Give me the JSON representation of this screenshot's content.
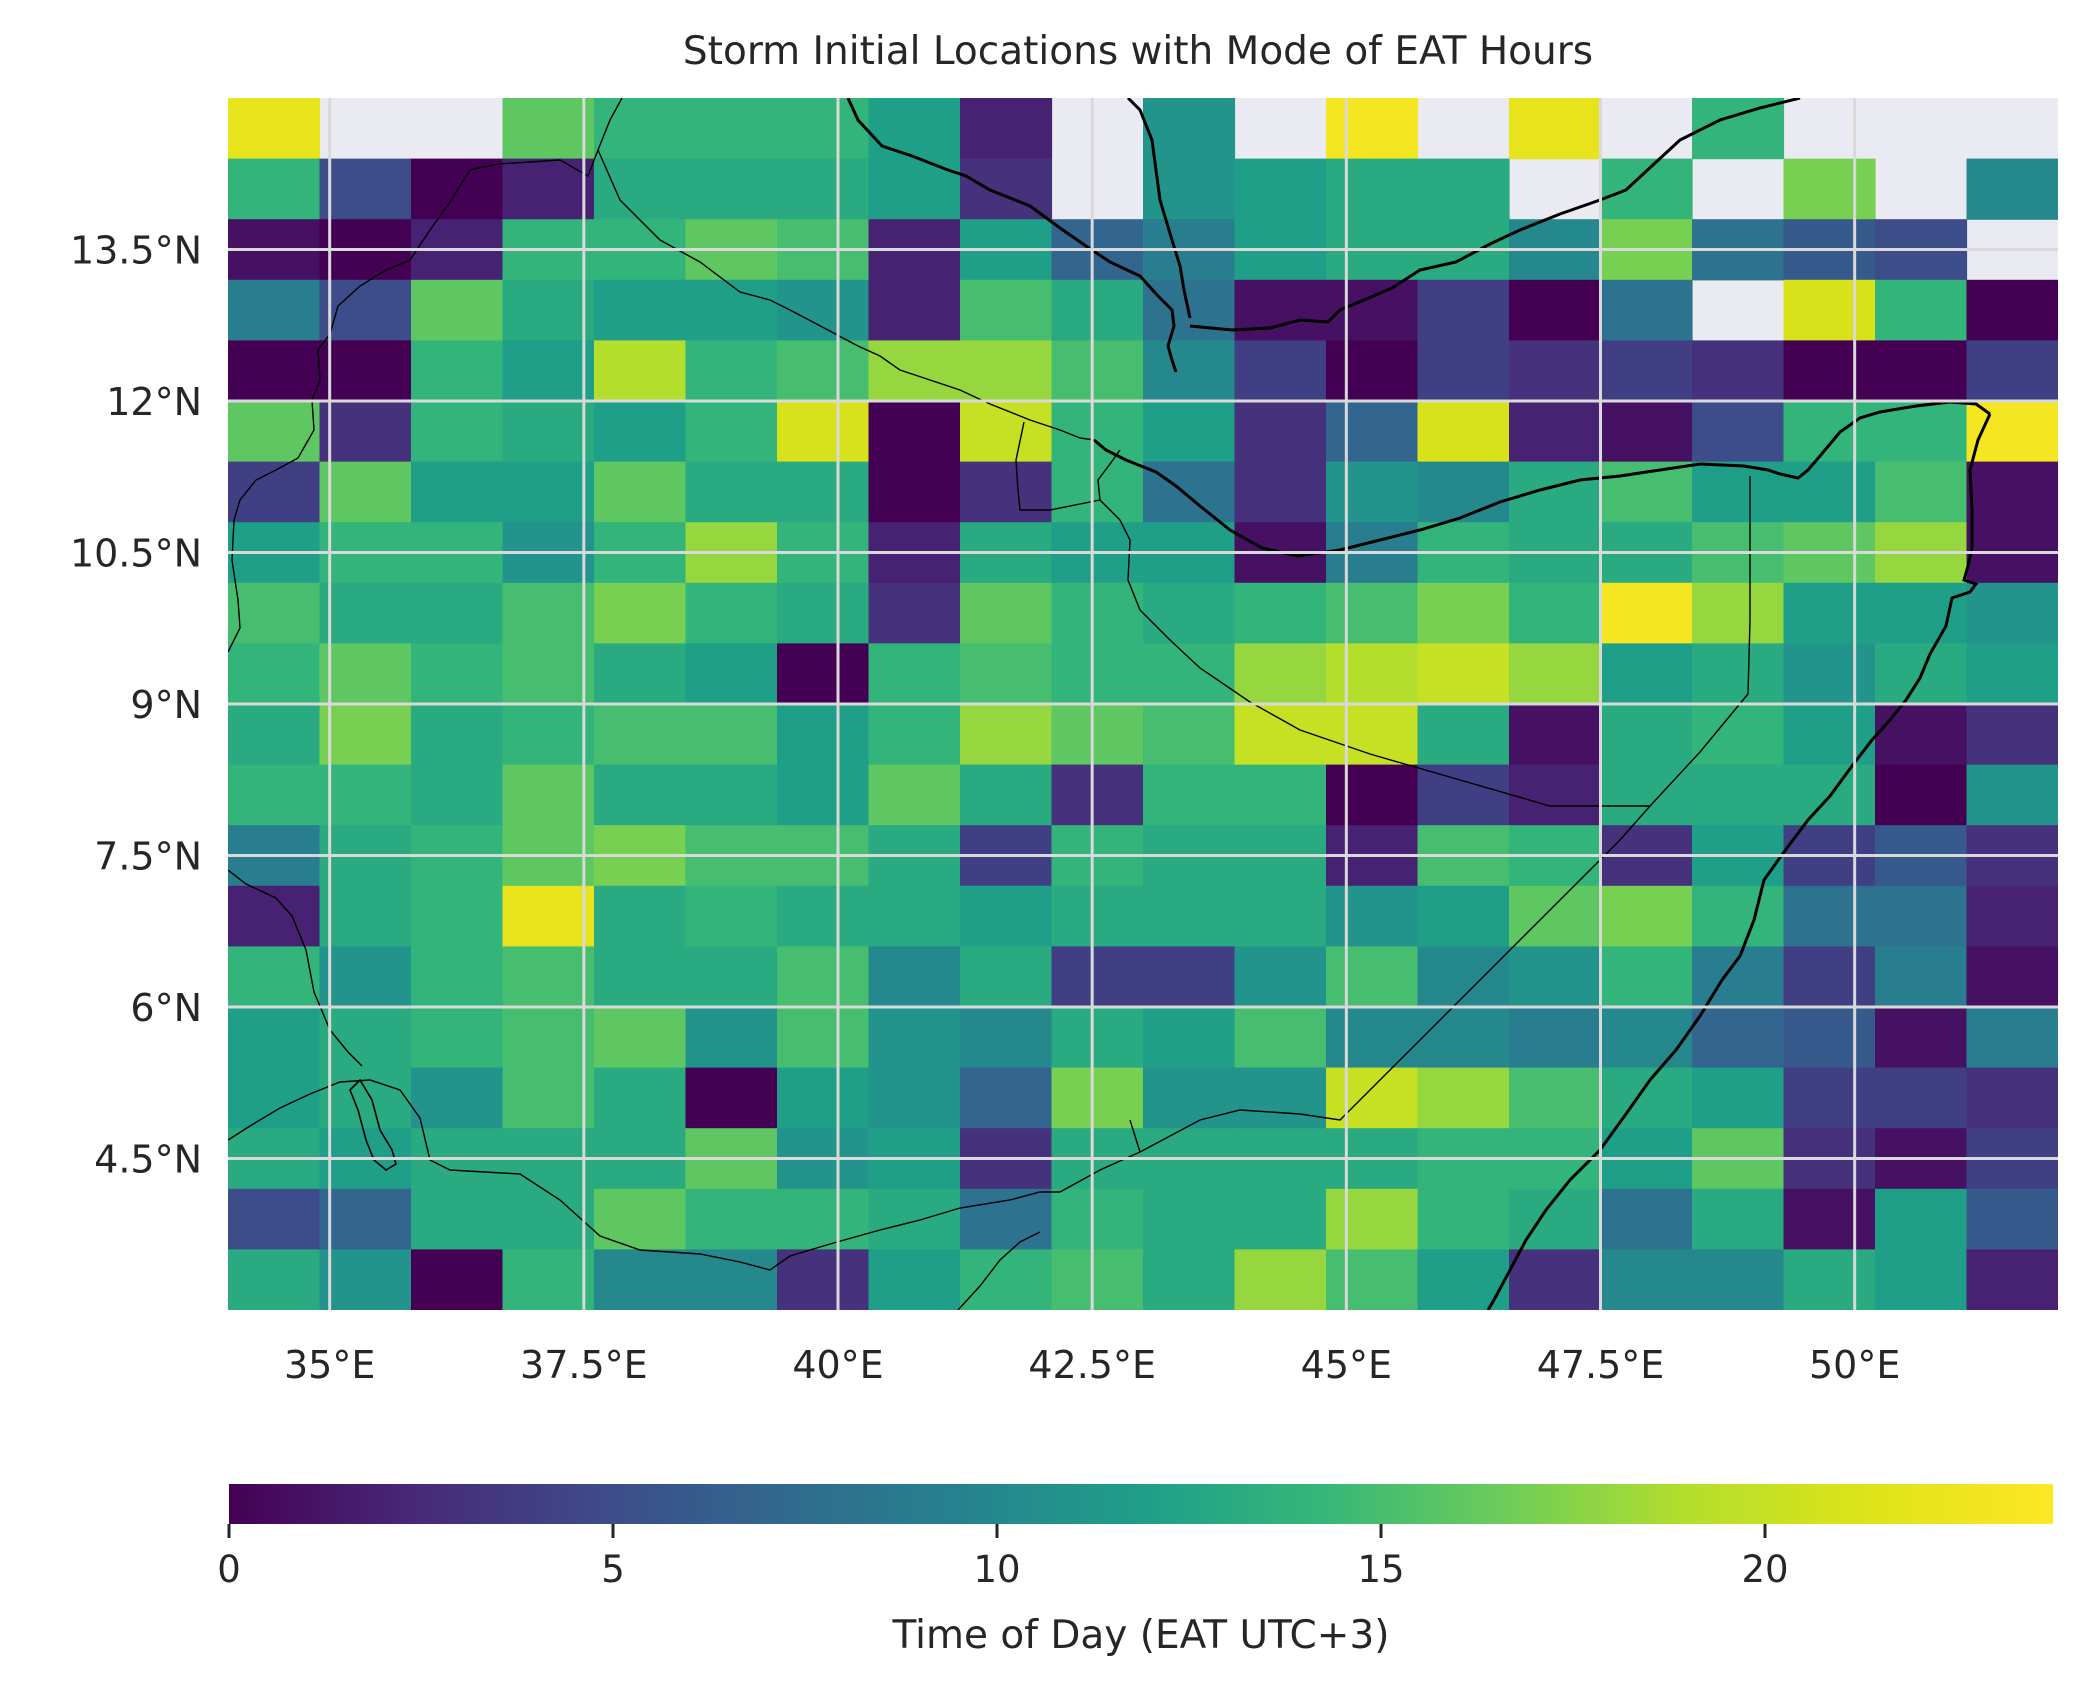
{
  "title": "Storm Initial Locations with Mode of EAT Hours",
  "colorbar": {
    "label": "Time of Day (EAT UTC+3)",
    "ticks": [
      0,
      5,
      10,
      15,
      20
    ],
    "tick_labels": [
      "0",
      "5",
      "10",
      "15",
      "20"
    ],
    "min": 0,
    "max": 23.75,
    "colormap": "viridis"
  },
  "x_tick_labels": [
    "35°E",
    "37.5°E",
    "40°E",
    "42.5°E",
    "45°E",
    "47.5°E",
    "50°E"
  ],
  "y_tick_labels": [
    "13.5°N",
    "12°N",
    "10.5°N",
    "9°N",
    "7.5°N",
    "6°N",
    "4.5°N"
  ],
  "colors": {
    "no_data": "#eaeaf2",
    "gridline": "#d9d9d9",
    "coastline": "#000000",
    "text": "#262626"
  },
  "chart_data": {
    "type": "heatmap",
    "title": "Storm Initial Locations with Mode of EAT Hours",
    "value_label": "Time of Day (EAT UTC+3)",
    "x_ticks": [
      35,
      37.5,
      40,
      42.5,
      45,
      47.5,
      50
    ],
    "y_ticks": [
      13.5,
      12,
      10.5,
      9,
      7.5,
      6,
      4.5
    ],
    "xlim": [
      34,
      52
    ],
    "ylim": [
      3,
      15
    ],
    "grid": true,
    "cell_size_deg": 0.9,
    "lon_edges": [
      34.0,
      34.9,
      35.8,
      36.7,
      37.6,
      38.5,
      39.4,
      40.3,
      41.2,
      42.1,
      43.0,
      43.9,
      44.8,
      45.7,
      46.6,
      47.5,
      48.4,
      49.3,
      50.2,
      51.1,
      52.0
    ],
    "lat_edges_top_down": [
      15.0,
      14.4,
      13.8,
      13.2,
      12.6,
      12.0,
      11.4,
      10.8,
      10.2,
      9.6,
      9.0,
      8.4,
      7.8,
      7.2,
      6.6,
      6.0,
      5.4,
      4.8,
      4.2,
      3.6,
      3.0
    ],
    "values_rows_top_down": [
      [
        22,
        null,
        null,
        16,
        14,
        14,
        14,
        12,
        2,
        null,
        11,
        null,
        23,
        null,
        22,
        null,
        14,
        null,
        null,
        null
      ],
      [
        14,
        5,
        0,
        2,
        13,
        13,
        13,
        12,
        3,
        null,
        11,
        12,
        13,
        13,
        null,
        14,
        null,
        17,
        null,
        10
      ],
      [
        1,
        0,
        2,
        14,
        14,
        16,
        15,
        2,
        12,
        7,
        9,
        12,
        13,
        13,
        10,
        17,
        8,
        6,
        5,
        null
      ],
      [
        9,
        5,
        16,
        13,
        12,
        12,
        11,
        2,
        15,
        13,
        8,
        1,
        1,
        4,
        0,
        8,
        null,
        21,
        14,
        0
      ],
      [
        0,
        0,
        14,
        12,
        19,
        14,
        15,
        18,
        18,
        15,
        10,
        4,
        0,
        4,
        3,
        4,
        3,
        0,
        0,
        4
      ],
      [
        16,
        3,
        14,
        13,
        12,
        14,
        21,
        0,
        20,
        14,
        12,
        3,
        7,
        21,
        2,
        1,
        5,
        14,
        14,
        23
      ],
      [
        4,
        16,
        12,
        12,
        16,
        13,
        13,
        0,
        3,
        14,
        8,
        3,
        11,
        10,
        13,
        15,
        12,
        12,
        15,
        1
      ],
      [
        12,
        14,
        14,
        11,
        14,
        18,
        14,
        2,
        13,
        12,
        12,
        1,
        9,
        14,
        13,
        13,
        15,
        16,
        18,
        1
      ],
      [
        15,
        13,
        13,
        15,
        17,
        14,
        13,
        3,
        16,
        14,
        13,
        14,
        15,
        17,
        14,
        23,
        18,
        12,
        12,
        11
      ],
      [
        14,
        16,
        14,
        15,
        13,
        12,
        0,
        14,
        15,
        14,
        14,
        18,
        19,
        20,
        18,
        12,
        13,
        11,
        13,
        12
      ],
      [
        13,
        17,
        13,
        14,
        15,
        15,
        12,
        14,
        18,
        16,
        15,
        20,
        20,
        13,
        1,
        13,
        14,
        12,
        1,
        3
      ],
      [
        14,
        14,
        13,
        16,
        13,
        13,
        12,
        16,
        13,
        3,
        14,
        14,
        0,
        4,
        2,
        13,
        13,
        13,
        0,
        11
      ],
      [
        9,
        13,
        14,
        16,
        17,
        15,
        15,
        13,
        4,
        14,
        13,
        13,
        2,
        15,
        14,
        3,
        12,
        4,
        6,
        3
      ],
      [
        2,
        13,
        14,
        22,
        13,
        14,
        13,
        13,
        12,
        13,
        13,
        13,
        11,
        12,
        16,
        17,
        14,
        8,
        8,
        2
      ],
      [
        14,
        11,
        14,
        15,
        13,
        13,
        15,
        10,
        13,
        4,
        4,
        11,
        15,
        10,
        11,
        14,
        9,
        4,
        9,
        1
      ],
      [
        12,
        13,
        14,
        15,
        16,
        11,
        15,
        11,
        10,
        13,
        12,
        15,
        10,
        10,
        9,
        10,
        7,
        6,
        1,
        9
      ],
      [
        12,
        13,
        11,
        15,
        13,
        0,
        12,
        11,
        7,
        17,
        11,
        11,
        20,
        18,
        15,
        13,
        12,
        4,
        4,
        3
      ],
      [
        13,
        12,
        13,
        13,
        13,
        16,
        11,
        12,
        3,
        13,
        13,
        13,
        13,
        14,
        14,
        12,
        16,
        3,
        1,
        4
      ],
      [
        5,
        7,
        13,
        13,
        16,
        14,
        14,
        13,
        8,
        14,
        13,
        13,
        18,
        14,
        13,
        8,
        13,
        1,
        12,
        6
      ],
      [
        13,
        11,
        0,
        14,
        10,
        10,
        3,
        12,
        14,
        15,
        13,
        18,
        15,
        12,
        3,
        10,
        10,
        13,
        12,
        2
      ]
    ]
  }
}
